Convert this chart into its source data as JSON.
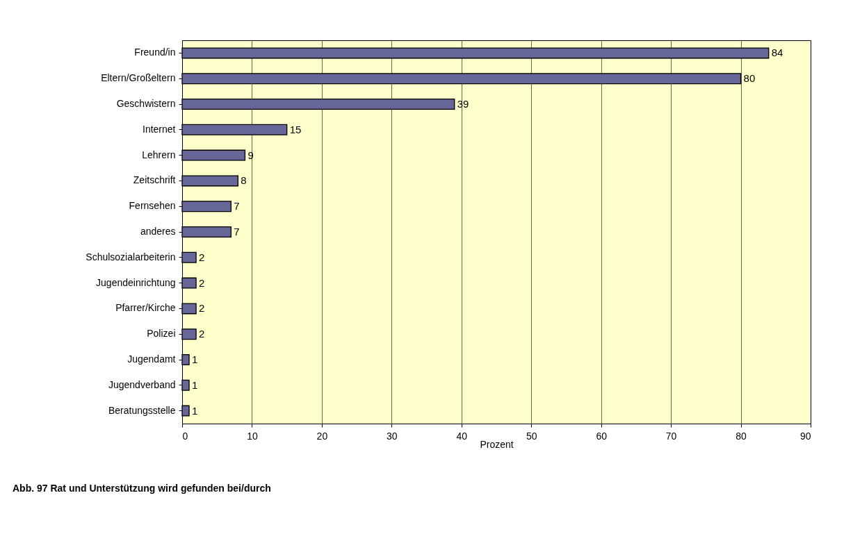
{
  "chart_data": {
    "type": "bar",
    "orientation": "horizontal",
    "title": "Abb. 97 Rat und Unterstützung wird gefunden bei/durch",
    "xlabel": "Prozent",
    "categories": [
      "Freund/in",
      "Eltern/Großeltern",
      "Geschwistern",
      "Internet",
      "Lehrern",
      "Zeitschrift",
      "Fernsehen",
      "anderes",
      "Schulsozialarbeiterin",
      "Jugendeinrichtung",
      "Pfarrer/Kirche",
      "Polizei",
      "Jugendamt",
      "Jugendverband",
      "Beratungsstelle"
    ],
    "values": [
      84,
      80,
      39,
      15,
      9,
      8,
      7,
      7,
      2,
      2,
      2,
      2,
      1,
      1,
      1
    ],
    "color": "#666699",
    "xlim": [
      0,
      90
    ],
    "xticks": [
      0,
      10,
      20,
      30,
      40,
      50,
      60,
      70,
      80,
      90
    ],
    "grid": "x",
    "data_labels": true
  }
}
